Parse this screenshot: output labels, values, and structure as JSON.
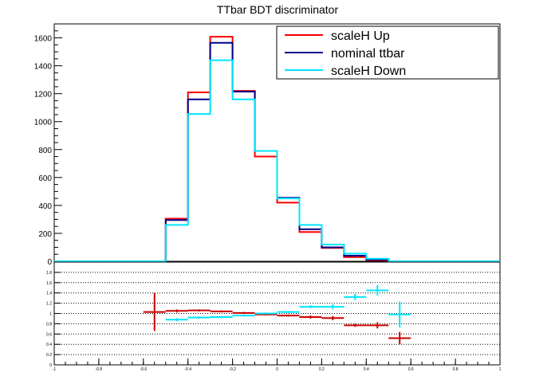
{
  "chart_data": [
    {
      "type": "step",
      "title": "TTbar BDT discriminator",
      "x_edges": [
        -1.0,
        -0.9,
        -0.8,
        -0.7,
        -0.6,
        -0.5,
        -0.4,
        -0.3,
        -0.2,
        -0.1,
        0.0,
        0.1,
        0.2,
        0.3,
        0.4,
        0.5,
        0.6,
        0.7,
        0.8,
        0.9,
        1.0
      ],
      "xlim": [
        -1.0,
        1.0
      ],
      "ylim": [
        0,
        1700
      ],
      "y_ticks": [
        0,
        200,
        400,
        600,
        800,
        1000,
        1200,
        1400,
        1600
      ],
      "y_tick_labels": [
        "0",
        "200",
        "400",
        "600",
        "800",
        "1000",
        "1200",
        "1400",
        "1600"
      ],
      "legend_position": "top-right",
      "series": [
        {
          "name": "scaleH Up",
          "color": "#ff0000",
          "values": [
            0,
            0,
            0,
            0,
            0,
            305,
            1210,
            1608,
            1220,
            750,
            420,
            210,
            95,
            30,
            8,
            0,
            0,
            0,
            0,
            0
          ]
        },
        {
          "name": "nominal ttbar",
          "color": "#00008b",
          "values": [
            0,
            0,
            0,
            0,
            0,
            295,
            1160,
            1565,
            1215,
            790,
            455,
            230,
            100,
            40,
            12,
            0,
            0,
            0,
            0,
            0
          ]
        },
        {
          "name": "scaleH Down",
          "color": "#00e5ff",
          "values": [
            0,
            0,
            0,
            0,
            0,
            260,
            1055,
            1440,
            1160,
            790,
            450,
            260,
            120,
            55,
            18,
            0,
            0,
            0,
            0,
            0
          ]
        }
      ]
    },
    {
      "type": "scatter",
      "xlim": [
        -1.0,
        1.0
      ],
      "ylim": [
        0,
        2.0
      ],
      "y_ticks": [
        0,
        0.2,
        0.4,
        0.6,
        0.8,
        1.0,
        1.2,
        1.4,
        1.6,
        1.8
      ],
      "y_tick_labels": [
        "0",
        "0.2",
        "0.4",
        "0.6",
        "0.8",
        "1",
        "1.2",
        "1.4",
        "1.6",
        "1.8"
      ],
      "x_ticks": [
        -1.0,
        -0.8,
        -0.6,
        -0.4,
        -0.2,
        0.0,
        0.2,
        0.4,
        0.6,
        0.8,
        1.0
      ],
      "x_tick_labels": [
        "-1",
        "-0.8",
        "-0.6",
        "-0.4",
        "-0.2",
        "0",
        "0.2",
        "0.4",
        "0.6",
        "0.8",
        "1"
      ],
      "grid": "horizontal dotted",
      "series": [
        {
          "color": "#cc0000",
          "points": [
            {
              "x": -0.55,
              "y": 1.03,
              "xerr": 0.05,
              "yerr": 0.37
            },
            {
              "x": -0.45,
              "y": 1.05,
              "xerr": 0.05,
              "yerr": 0.03
            },
            {
              "x": -0.35,
              "y": 1.06,
              "xerr": 0.05,
              "yerr": 0.02
            },
            {
              "x": -0.25,
              "y": 1.04,
              "xerr": 0.05,
              "yerr": 0.02
            },
            {
              "x": -0.15,
              "y": 1.01,
              "xerr": 0.05,
              "yerr": 0.02
            },
            {
              "x": -0.05,
              "y": 0.98,
              "xerr": 0.05,
              "yerr": 0.02
            },
            {
              "x": 0.05,
              "y": 0.96,
              "xerr": 0.05,
              "yerr": 0.02
            },
            {
              "x": 0.15,
              "y": 0.93,
              "xerr": 0.05,
              "yerr": 0.03
            },
            {
              "x": 0.25,
              "y": 0.91,
              "xerr": 0.05,
              "yerr": 0.04
            },
            {
              "x": 0.35,
              "y": 0.77,
              "xerr": 0.05,
              "yerr": 0.03
            },
            {
              "x": 0.45,
              "y": 0.77,
              "xerr": 0.05,
              "yerr": 0.06
            },
            {
              "x": 0.55,
              "y": 0.52,
              "xerr": 0.05,
              "yerr": 0.12
            }
          ]
        },
        {
          "color": "#00e5ff",
          "points": [
            {
              "x": -0.45,
              "y": 0.88,
              "xerr": 0.05,
              "yerr": 0.03
            },
            {
              "x": -0.35,
              "y": 0.92,
              "xerr": 0.05,
              "yerr": 0.02
            },
            {
              "x": -0.25,
              "y": 0.93,
              "xerr": 0.05,
              "yerr": 0.02
            },
            {
              "x": -0.15,
              "y": 0.96,
              "xerr": 0.05,
              "yerr": 0.02
            },
            {
              "x": -0.05,
              "y": 1.0,
              "xerr": 0.05,
              "yerr": 0.02
            },
            {
              "x": 0.05,
              "y": 1.03,
              "xerr": 0.05,
              "yerr": 0.02
            },
            {
              "x": 0.15,
              "y": 1.13,
              "xerr": 0.05,
              "yerr": 0.03
            },
            {
              "x": 0.25,
              "y": 1.13,
              "xerr": 0.05,
              "yerr": 0.05
            },
            {
              "x": 0.35,
              "y": 1.32,
              "xerr": 0.05,
              "yerr": 0.06
            },
            {
              "x": 0.45,
              "y": 1.45,
              "xerr": 0.05,
              "yerr": 0.1
            },
            {
              "x": 0.55,
              "y": 0.98,
              "xerr": 0.05,
              "yerr": 0.25
            }
          ]
        }
      ]
    }
  ]
}
